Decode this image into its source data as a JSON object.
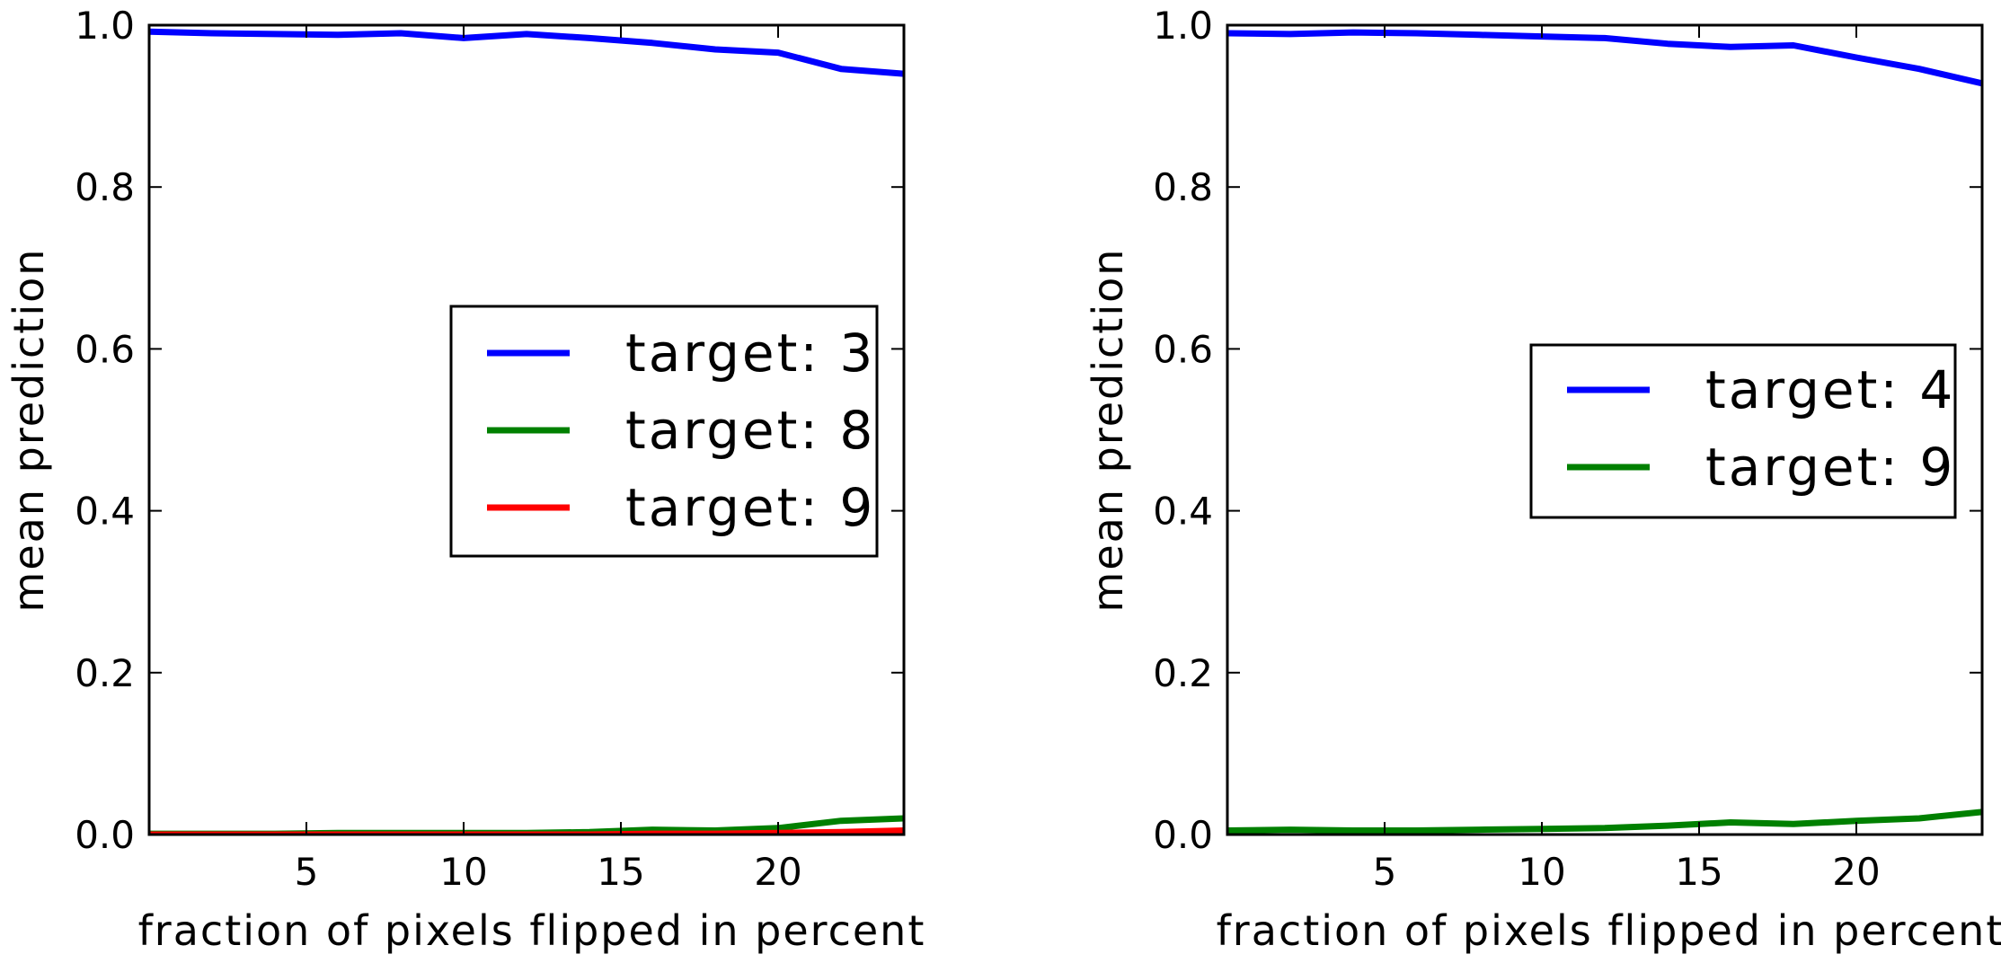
{
  "chart_data": [
    {
      "type": "line",
      "xlabel": "fraction of pixels flipped in percent",
      "ylabel": "mean prediction",
      "xlim": [
        0,
        24
      ],
      "ylim": [
        0.0,
        1.0
      ],
      "xticks": [
        5,
        10,
        15,
        20
      ],
      "xtick_labels": [
        "5",
        "10",
        "15",
        "20"
      ],
      "yticks": [
        0.0,
        0.2,
        0.4,
        0.6,
        0.8,
        1.0
      ],
      "ytick_labels": [
        "0.0",
        "0.2",
        "0.4",
        "0.6",
        "0.8",
        "1.0"
      ],
      "grid": false,
      "legend_position": "center-right",
      "x": [
        0,
        2,
        4,
        6,
        8,
        10,
        12,
        14,
        16,
        18,
        20,
        22,
        24
      ],
      "series": [
        {
          "name": "target: 3",
          "color": "#0000ff",
          "values": [
            0.992,
            0.99,
            0.989,
            0.988,
            0.99,
            0.984,
            0.989,
            0.984,
            0.978,
            0.97,
            0.966,
            0.946,
            0.94
          ]
        },
        {
          "name": "target: 8",
          "color": "#008000",
          "values": [
            0.001,
            0.001,
            0.001,
            0.002,
            0.002,
            0.002,
            0.002,
            0.003,
            0.006,
            0.005,
            0.008,
            0.017,
            0.02
          ]
        },
        {
          "name": "target: 9",
          "color": "#ff0000",
          "values": [
            0.0,
            0.0,
            0.0,
            0.0,
            0.0,
            0.0,
            0.0,
            0.0,
            0.001,
            0.001,
            0.002,
            0.003,
            0.005
          ]
        }
      ]
    },
    {
      "type": "line",
      "xlabel": "fraction of pixels flipped in percent",
      "ylabel": "mean prediction",
      "xlim": [
        0,
        24
      ],
      "ylim": [
        0.0,
        1.0
      ],
      "xticks": [
        5,
        10,
        15,
        20
      ],
      "xtick_labels": [
        "5",
        "10",
        "15",
        "20"
      ],
      "yticks": [
        0.0,
        0.2,
        0.4,
        0.6,
        0.8,
        1.0
      ],
      "ytick_labels": [
        "0.0",
        "0.2",
        "0.4",
        "0.6",
        "0.8",
        "1.0"
      ],
      "grid": false,
      "legend_position": "center-right",
      "x": [
        0,
        2,
        4,
        6,
        8,
        10,
        12,
        14,
        16,
        18,
        20,
        22,
        24
      ],
      "series": [
        {
          "name": "target: 4",
          "color": "#0000ff",
          "values": [
            0.99,
            0.989,
            0.991,
            0.99,
            0.988,
            0.986,
            0.984,
            0.977,
            0.973,
            0.975,
            0.96,
            0.946,
            0.928
          ]
        },
        {
          "name": "target: 9",
          "color": "#008000",
          "values": [
            0.005,
            0.006,
            0.005,
            0.005,
            0.006,
            0.007,
            0.008,
            0.011,
            0.015,
            0.013,
            0.017,
            0.02,
            0.028
          ]
        }
      ]
    }
  ]
}
